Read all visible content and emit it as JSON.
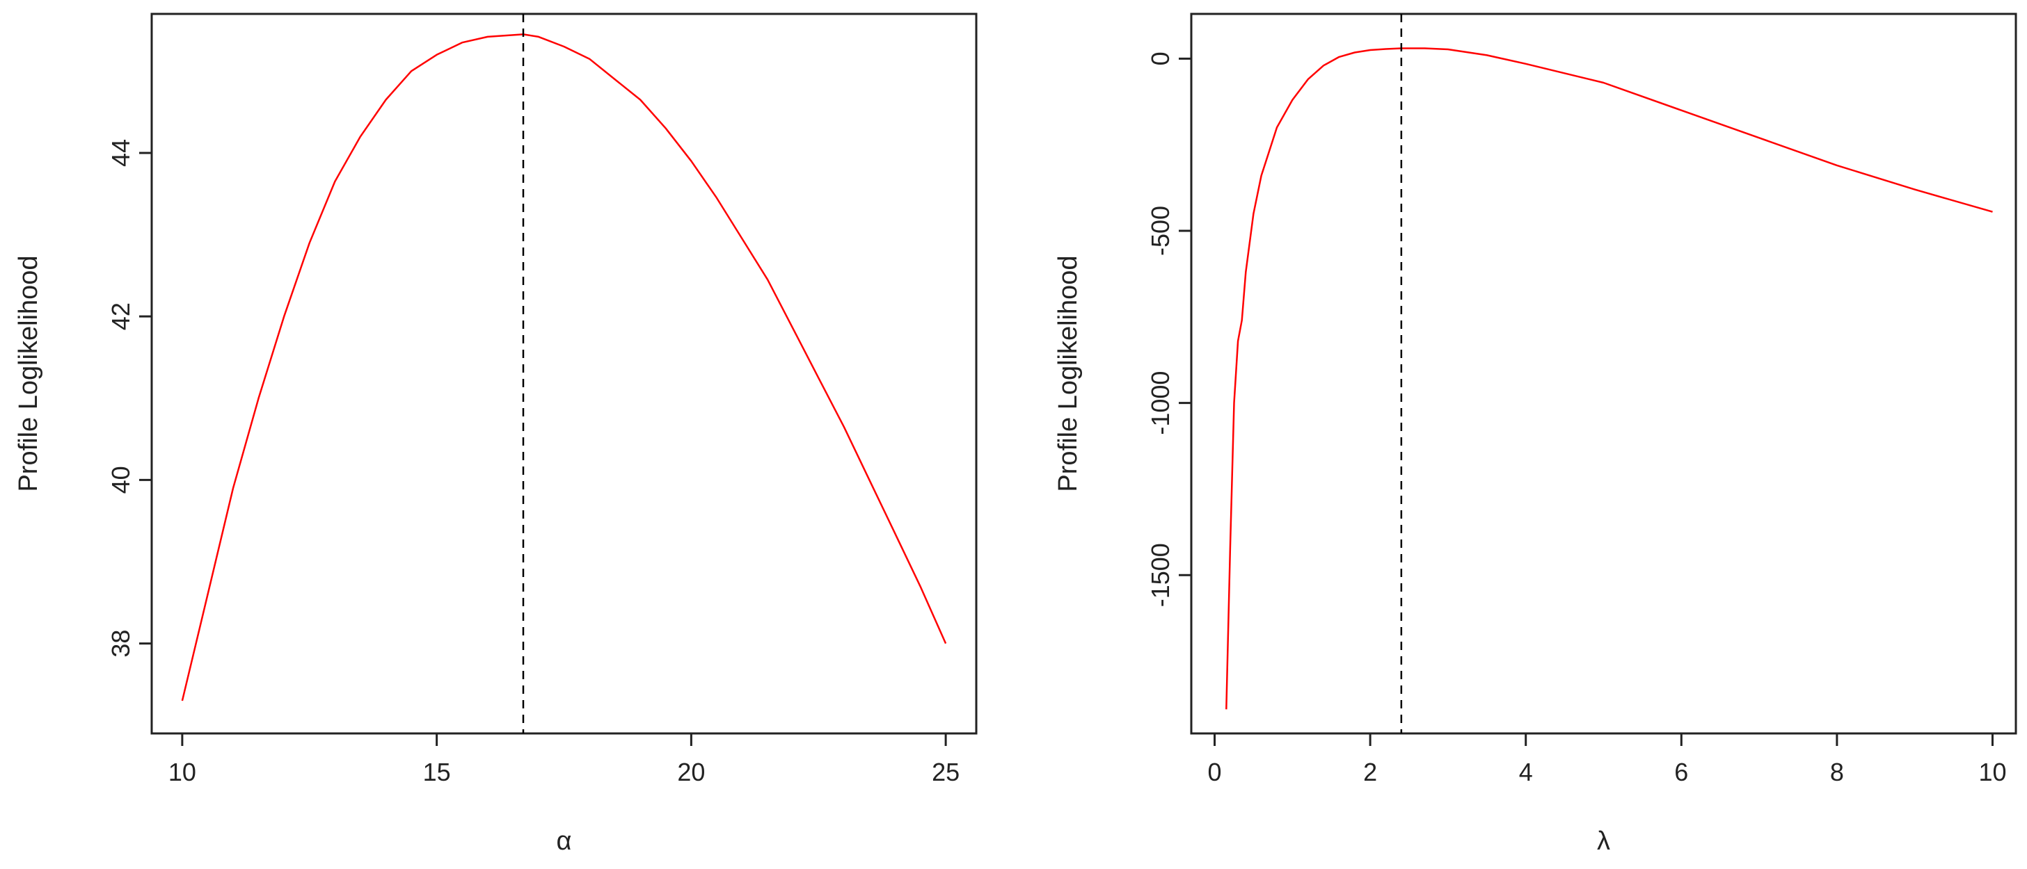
{
  "chart_data": [
    {
      "type": "line",
      "title": "",
      "xlabel": "α",
      "ylabel": "Profile Loglikelihood",
      "xlim": [
        9.4,
        25.6
      ],
      "ylim": [
        36.9,
        45.7
      ],
      "xticks": [
        10,
        15,
        20,
        25
      ],
      "yticks": [
        38,
        40,
        42,
        44
      ],
      "grid": false,
      "legend": "none",
      "series": [
        {
          "color": "#ff0000",
          "x": [
            10,
            10.5,
            11,
            11.5,
            12,
            12.5,
            13,
            13.5,
            14,
            14.5,
            15,
            15.5,
            16,
            16.7,
            17,
            17.5,
            18,
            18.5,
            19,
            19.5,
            20,
            20.5,
            21,
            21.5,
            22,
            22.5,
            23,
            23.5,
            24,
            24.5,
            25
          ],
          "y": [
            37.3,
            38.6,
            39.9,
            41.0,
            42.0,
            42.9,
            43.65,
            44.2,
            44.65,
            45.0,
            45.2,
            45.35,
            45.42,
            45.45,
            45.42,
            45.3,
            45.15,
            44.9,
            44.65,
            44.3,
            43.9,
            43.45,
            42.95,
            42.45,
            41.85,
            41.25,
            40.65,
            40.0,
            39.35,
            38.7,
            38.0
          ]
        }
      ],
      "vline": {
        "x": 16.7,
        "color": "#000000",
        "style": "dashed"
      }
    },
    {
      "type": "line",
      "title": "",
      "xlabel": "λ",
      "ylabel": "Profile Loglikelihood",
      "xlim": [
        -0.3,
        10.3
      ],
      "ylim": [
        -1960,
        130
      ],
      "xticks": [
        0,
        2,
        4,
        6,
        8,
        10
      ],
      "yticks": [
        0,
        -500,
        -1000,
        -1500
      ],
      "grid": false,
      "legend": "none",
      "series": [
        {
          "color": "#ff0000",
          "x": [
            0.15,
            0.2,
            0.25,
            0.3,
            0.35,
            0.4,
            0.5,
            0.6,
            0.7,
            0.8,
            1.0,
            1.2,
            1.4,
            1.6,
            1.8,
            2.0,
            2.2,
            2.4,
            2.7,
            3.0,
            3.5,
            4.0,
            5.0,
            6.0,
            7.0,
            8.0,
            9.0,
            10.0
          ],
          "y": [
            -1890,
            -1420,
            -1000,
            -820,
            -760,
            -620,
            -450,
            -340,
            -270,
            -200,
            -120,
            -60,
            -20,
            5,
            18,
            25,
            28,
            30,
            30,
            27,
            10,
            -15,
            -70,
            -150,
            -230,
            -310,
            -380,
            -445
          ]
        }
      ],
      "vline": {
        "x": 2.4,
        "color": "#000000",
        "style": "dashed"
      }
    }
  ]
}
